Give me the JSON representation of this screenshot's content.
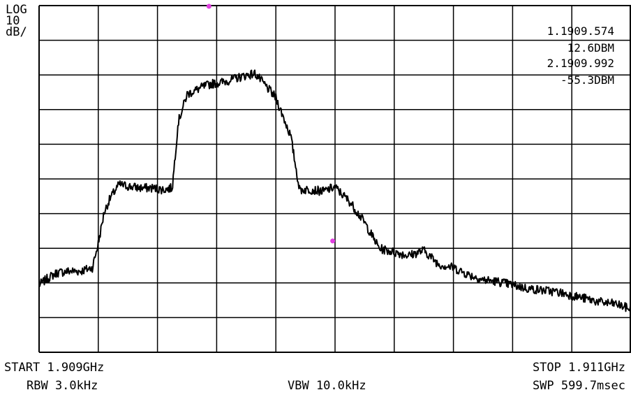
{
  "screen": {
    "scale": [
      "LOG",
      "10",
      "dB/"
    ],
    "markers": [
      "1.1909.574",
      "12.6DBM",
      "2.1909.992",
      "-55.3DBM"
    ],
    "start": "START 1.909GHz",
    "rbw": "RBW 3.0kHz",
    "vbw": "VBW 10.0kHz",
    "stop": "STOP 1.911GHz",
    "swp": "SWP 599.7msec"
  },
  "colors": {
    "trace": "#000000",
    "grid": "#000000",
    "marker": "#e040e0"
  },
  "chart_data": {
    "type": "line",
    "x_unit": "MHz",
    "y_unit": "dBm",
    "xlim": [
      1909.0,
      1911.0
    ],
    "ylim": [
      -87.4,
      12.6
    ],
    "grid": true,
    "gridlines": {
      "x_divisions": 10,
      "y_divisions": 10
    },
    "series": [
      {
        "x": [
          1909.0,
          1909.03,
          1909.06,
          1909.1,
          1909.14,
          1909.18,
          1909.2,
          1909.22,
          1909.24,
          1909.27,
          1909.3,
          1909.34,
          1909.38,
          1909.42,
          1909.45,
          1909.47,
          1909.5,
          1909.55,
          1909.58,
          1909.62,
          1909.66,
          1909.7,
          1909.73,
          1909.75,
          1909.8,
          1909.85,
          1909.88,
          1909.92,
          1909.96,
          1909.99,
          1910.0,
          1910.05,
          1910.1,
          1910.15,
          1910.2,
          1910.25,
          1910.3,
          1910.35,
          1910.4,
          1910.45,
          1910.5,
          1910.55,
          1910.6,
          1910.65,
          1910.7,
          1910.75,
          1910.8,
          1910.85,
          1910.9,
          1910.95,
          1911.0
        ],
        "y": [
          -68.0,
          -66.0,
          -64.5,
          -64.0,
          -64.0,
          -63.0,
          -56.0,
          -47.0,
          -43.0,
          -39.0,
          -39.5,
          -40.0,
          -40.0,
          -40.5,
          -40.0,
          -21.0,
          -13.0,
          -11.0,
          -10.0,
          -9.5,
          -8.5,
          -7.5,
          -7.0,
          -9.0,
          -14.0,
          -25.0,
          -40.5,
          -40.5,
          -41.0,
          -40.0,
          -39.8,
          -44.0,
          -50.0,
          -57.5,
          -58.5,
          -59.5,
          -58.0,
          -62.0,
          -63.0,
          -65.0,
          -66.5,
          -67.0,
          -68.0,
          -69.0,
          -69.5,
          -70.0,
          -71.0,
          -72.0,
          -73.0,
          -73.5,
          -75.0
        ]
      }
    ],
    "markers": [
      {
        "label": "1",
        "x": 1909.574,
        "y": 12.6
      },
      {
        "label": "2",
        "x": 1909.992,
        "y": -55.3
      }
    ]
  }
}
